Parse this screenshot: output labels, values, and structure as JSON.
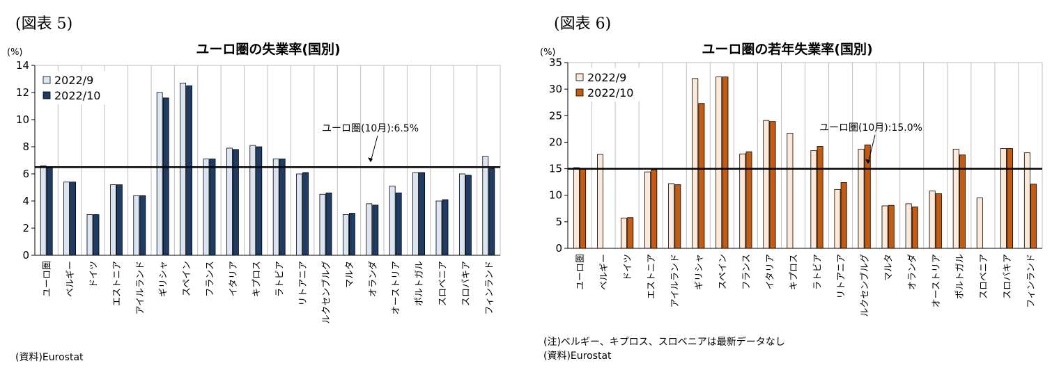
{
  "colors": {
    "c1_light": "#dce6f2",
    "c1_dark": "#1f3d64",
    "c2_light": "#fde9d9",
    "c2_dark": "#c55a11",
    "line": "#000000",
    "grid": "#bfbfbf"
  },
  "chart_data": [
    {
      "type": "bar",
      "panel_label": "(図表 5)",
      "title": "ユーロ圏の失業率(国別)",
      "ylabel": "(%)",
      "ylim": [
        0,
        14
      ],
      "yticks": [
        0,
        2,
        4,
        6,
        8,
        10,
        12,
        14
      ],
      "legend_position": "top-left",
      "categories": [
        "ユーロ圏",
        "ベルギー",
        "ドイツ",
        "エストニア",
        "アイルランド",
        "ギリシャ",
        "スペイン",
        "フランス",
        "イタリア",
        "キプロス",
        "ラトビア",
        "リトアニア",
        "ルクセンブルグ",
        "マルタ",
        "オランダ",
        "オーストリア",
        "ポルトガル",
        "スロベニア",
        "スロバキア",
        "フィンランド"
      ],
      "series": [
        {
          "name": "2022/9",
          "values": [
            6.6,
            5.4,
            3.0,
            5.2,
            4.4,
            12.0,
            12.7,
            7.1,
            7.9,
            8.1,
            7.1,
            6.0,
            4.5,
            3.0,
            3.8,
            5.1,
            6.1,
            4.0,
            6.0,
            7.3
          ]
        },
        {
          "name": "2022/10",
          "values": [
            6.5,
            5.4,
            3.0,
            5.2,
            4.4,
            11.6,
            12.5,
            7.1,
            7.8,
            8.0,
            7.1,
            6.1,
            4.6,
            3.1,
            3.7,
            4.6,
            6.1,
            4.1,
            5.9,
            6.4
          ]
        }
      ],
      "reference_line": {
        "value": 6.5,
        "label": "ユーロ圏(10月):6.5%"
      },
      "notes": [
        "(資料)Eurostat"
      ]
    },
    {
      "type": "bar",
      "panel_label": "(図表 6)",
      "title": "ユーロ圏の若年失業率(国別)",
      "ylabel": "(%)",
      "ylim": [
        0,
        35
      ],
      "yticks": [
        0,
        5,
        10,
        15,
        20,
        25,
        30,
        35
      ],
      "legend_position": "top-left",
      "categories": [
        "ユーロ圏",
        "ベルギー",
        "ドイツ",
        "エストニア",
        "アイルランド",
        "ギリシャ",
        "スペイン",
        "フランス",
        "イタリア",
        "キプロス",
        "ラトビア",
        "リトアニア",
        "ルクセンブルグ",
        "マルタ",
        "オランダ",
        "オーストリア",
        "ポルトガル",
        "スロベニア",
        "スロバキア",
        "フィンランド"
      ],
      "series": [
        {
          "name": "2022/9",
          "values": [
            15.2,
            17.7,
            5.7,
            14.4,
            12.2,
            32.0,
            32.3,
            17.8,
            24.1,
            21.7,
            18.4,
            11.1,
            18.7,
            8.0,
            8.4,
            10.8,
            18.7,
            9.5,
            18.8,
            18.0
          ]
        },
        {
          "name": "2022/10",
          "values": [
            15.0,
            null,
            5.8,
            14.8,
            12.0,
            27.3,
            32.3,
            18.2,
            23.9,
            null,
            19.2,
            12.4,
            19.5,
            8.1,
            7.8,
            10.3,
            17.6,
            null,
            18.8,
            12.1
          ]
        }
      ],
      "reference_line": {
        "value": 15.0,
        "label": "ユーロ圏(10月):15.0%"
      },
      "notes": [
        "(注)ベルギー、キプロス、スロベニアは最新データなし",
        "(資料)Eurostat"
      ]
    }
  ]
}
